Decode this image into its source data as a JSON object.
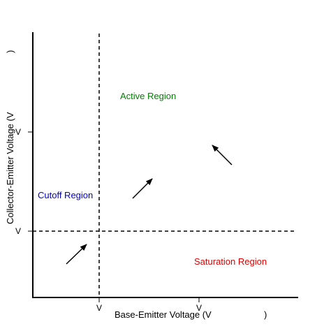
{
  "title": "",
  "axes": {
    "x_label": "Base-Emitter Voltage (V",
    "x_label_close": ")",
    "y_label": "Collector-Emitter Voltage (V",
    "y_label_close": ")",
    "x_ticks": [
      "V",
      "V"
    ],
    "y_ticks": [
      "V",
      "V"
    ]
  },
  "regions": {
    "active": {
      "label": "Active Region",
      "color": "#008000"
    },
    "cutoff": {
      "label": "Cutoff Region",
      "color": "#0000cc"
    },
    "saturation": {
      "label": "Saturation Region",
      "color": "#dd0000"
    }
  },
  "colors": {
    "axis": "#000000",
    "guide": "#000000",
    "text": "#000000"
  }
}
